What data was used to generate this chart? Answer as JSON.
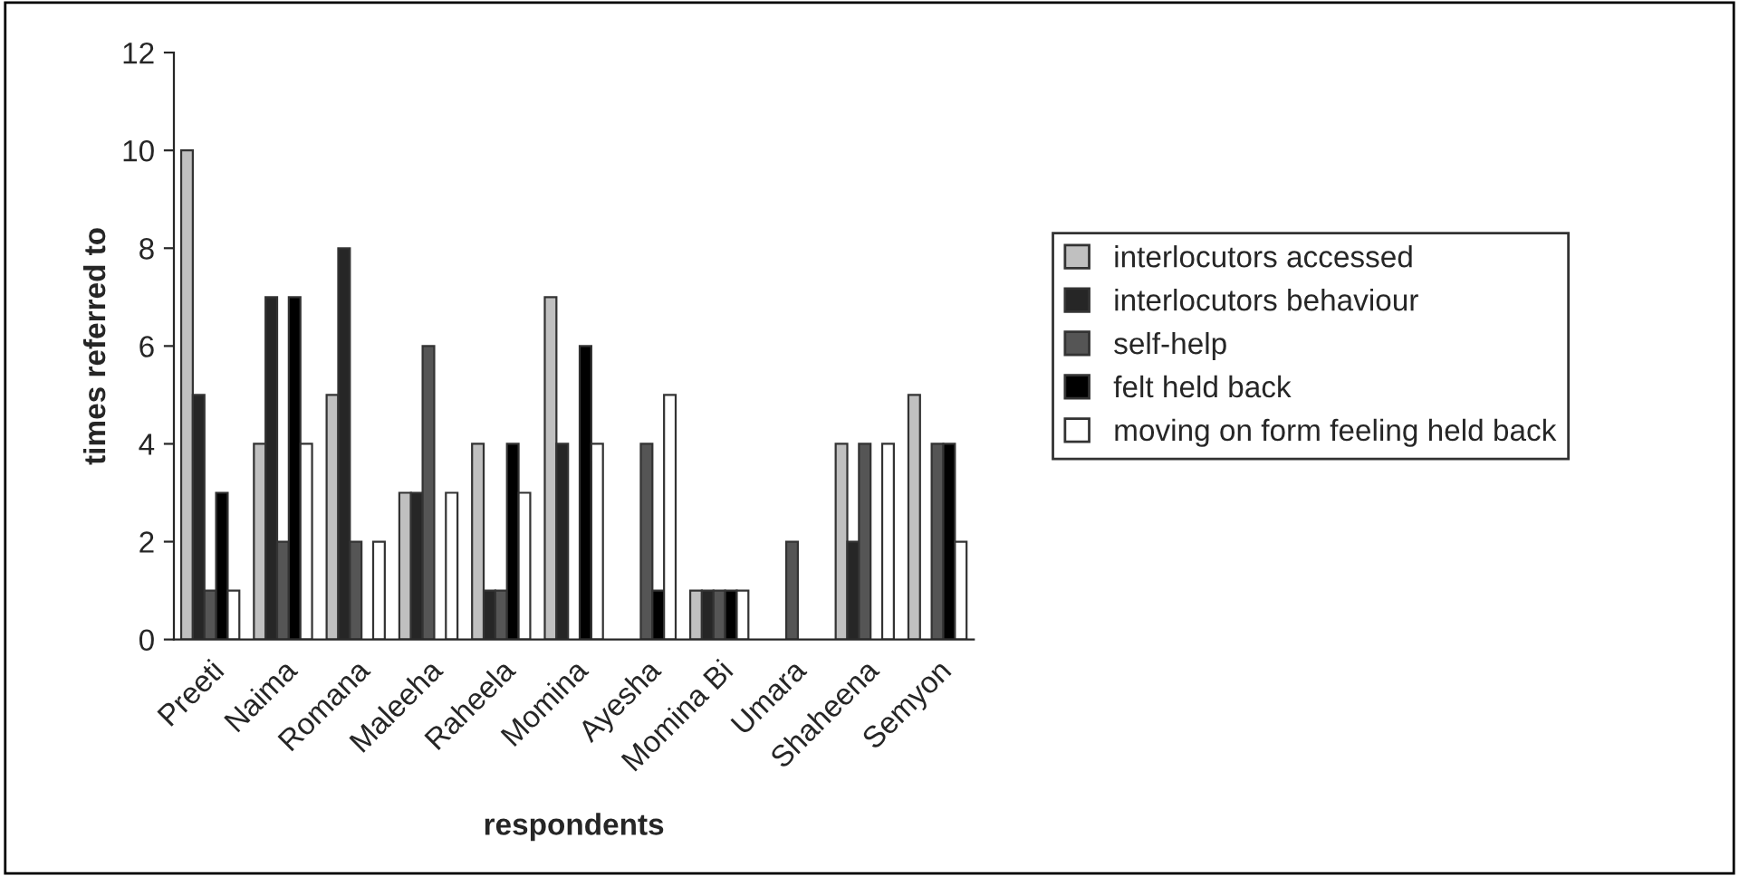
{
  "chart_data": {
    "type": "bar",
    "xlabel": "respondents",
    "ylabel": "times referred to",
    "categories": [
      "Preeti",
      "Naima",
      "Romana",
      "Maleeha",
      "Raheela",
      "Momina",
      "Ayesha",
      "Momina Bi",
      "Umara",
      "Shaheena",
      "Semyon"
    ],
    "series": [
      {
        "name": "interlocutors accessed",
        "color": "#c0c0c0",
        "values": [
          10,
          4,
          5,
          3,
          4,
          7,
          null,
          1,
          null,
          4,
          5
        ]
      },
      {
        "name": "interlocutors behaviour",
        "color": "#262626",
        "values": [
          5,
          7,
          8,
          3,
          1,
          4,
          null,
          1,
          null,
          2,
          null
        ]
      },
      {
        "name": "self-help",
        "color": "#555555",
        "values": [
          1,
          2,
          2,
          6,
          1,
          null,
          4,
          1,
          2,
          4,
          4
        ]
      },
      {
        "name": "felt held back",
        "color": "#000000",
        "values": [
          3,
          7,
          null,
          null,
          4,
          6,
          1,
          1,
          null,
          null,
          4
        ]
      },
      {
        "name": "moving on form feeling held back",
        "color": "#ffffff",
        "values": [
          1,
          4,
          2,
          3,
          3,
          4,
          5,
          1,
          null,
          4,
          2
        ]
      }
    ],
    "ylim": [
      0,
      12
    ],
    "yticks": [
      0,
      2,
      4,
      6,
      8,
      10,
      12
    ],
    "legend": "right",
    "grid": false
  }
}
